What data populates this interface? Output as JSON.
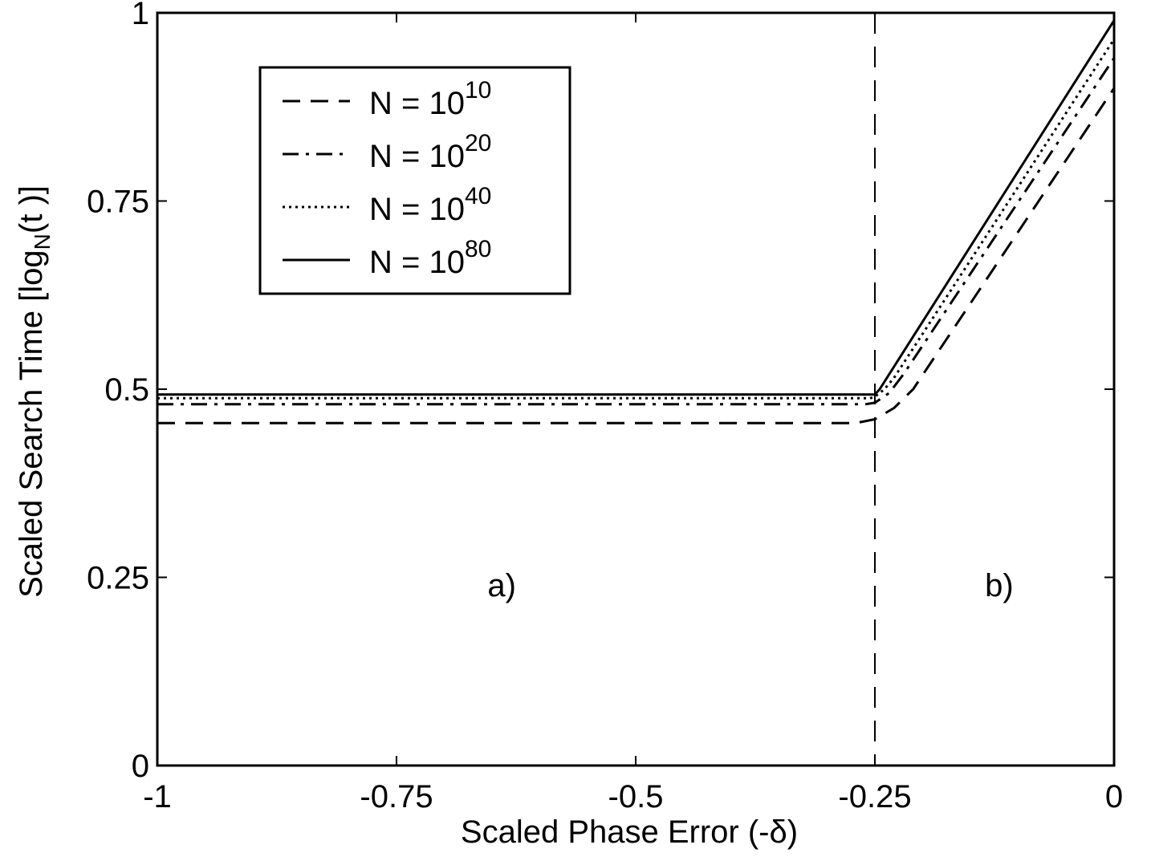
{
  "chart_data": {
    "type": "line",
    "xlabel": "Scaled Phase Error (-δ)",
    "ylabel": {
      "main": "Scaled Search Time [log",
      "sub": "N",
      "tail": "(t )]"
    },
    "xlim": [
      -1,
      0
    ],
    "ylim": [
      0,
      1
    ],
    "xticks": [
      -1,
      -0.75,
      -0.5,
      -0.25,
      0
    ],
    "xtick_labels": [
      "-1",
      "-0.75",
      "-0.5",
      "-0.25",
      "0"
    ],
    "yticks": [
      0,
      0.25,
      0.5,
      0.75,
      1
    ],
    "ytick_labels": [
      "0",
      "0.25",
      "0.5",
      "0.75",
      "1"
    ],
    "grid": false,
    "legend_position": "top-left",
    "series": [
      {
        "name": "N = 10^10",
        "label_base": "N = 10",
        "label_exp": "10",
        "dash": "dashed",
        "x": [
          -1,
          -0.27,
          -0.25,
          -0.23,
          -0.21,
          0
        ],
        "y": [
          0.455,
          0.455,
          0.46,
          0.475,
          0.5,
          0.9
        ]
      },
      {
        "name": "N = 10^20",
        "label_base": "N = 10",
        "label_exp": "20",
        "dash": "dashdot",
        "x": [
          -1,
          -0.26,
          -0.25,
          -0.235,
          -0.22,
          0
        ],
        "y": [
          0.48,
          0.48,
          0.482,
          0.495,
          0.52,
          0.94
        ]
      },
      {
        "name": "N = 10^40",
        "label_base": "N = 10",
        "label_exp": "40",
        "dash": "dotted",
        "x": [
          -1,
          -0.255,
          -0.25,
          -0.24,
          -0.23,
          0
        ],
        "y": [
          0.488,
          0.488,
          0.49,
          0.5,
          0.515,
          0.965
        ]
      },
      {
        "name": "N = 10^80",
        "label_base": "N = 10",
        "label_exp": "80",
        "dash": "solid",
        "x": [
          -1,
          -0.25,
          -0.245,
          0
        ],
        "y": [
          0.493,
          0.493,
          0.5,
          0.99
        ]
      }
    ],
    "vertical_line": {
      "x": -0.25,
      "style": "dashed"
    },
    "annotations": [
      {
        "text": "a)",
        "x": -0.64,
        "y": 0.225
      },
      {
        "text": "b)",
        "x": -0.12,
        "y": 0.225
      }
    ]
  }
}
